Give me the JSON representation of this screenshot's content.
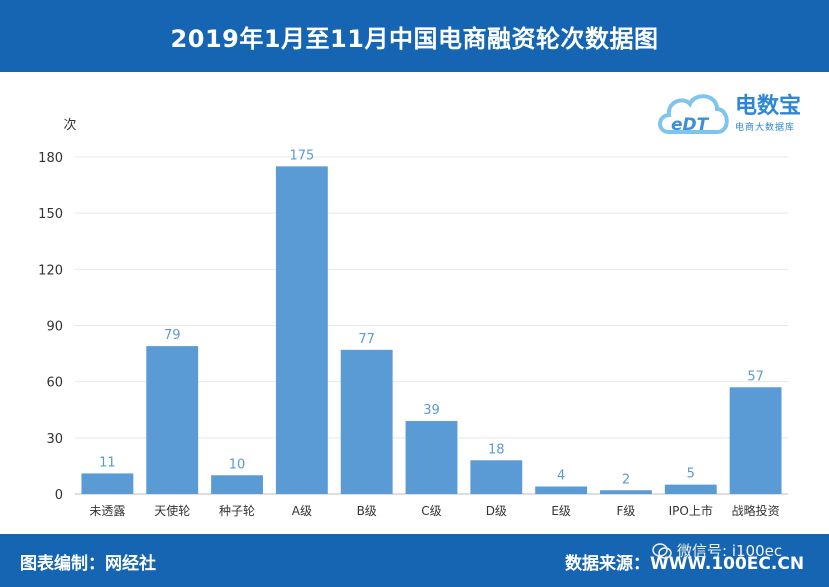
{
  "header": {
    "title": "2019年1月至11月中国电商融资轮次数据图"
  },
  "logo": {
    "brand": "电数宝",
    "mark": "eDT",
    "subtitle": "电商大数据库"
  },
  "footer": {
    "credit": "图表编制：网经社",
    "source": "数据来源：WWW.100EC.CN",
    "watermark": "微信号: i100ec"
  },
  "colors": {
    "bar": "#5b9bd5",
    "header": "#1565b3",
    "label": "#5b9bd5"
  },
  "chart_data": {
    "type": "bar",
    "ylabel": "次",
    "ylim": [
      0,
      180
    ],
    "yticks": [
      0,
      30,
      60,
      90,
      120,
      150,
      180
    ],
    "categories": [
      "未透露",
      "天使轮",
      "种子轮",
      "A级",
      "B级",
      "C级",
      "D级",
      "E级",
      "F级",
      "IPO上市",
      "战略投资"
    ],
    "values": [
      11,
      79,
      10,
      175,
      77,
      39,
      18,
      4,
      2,
      5,
      57
    ],
    "grid": true,
    "legend": "none"
  }
}
